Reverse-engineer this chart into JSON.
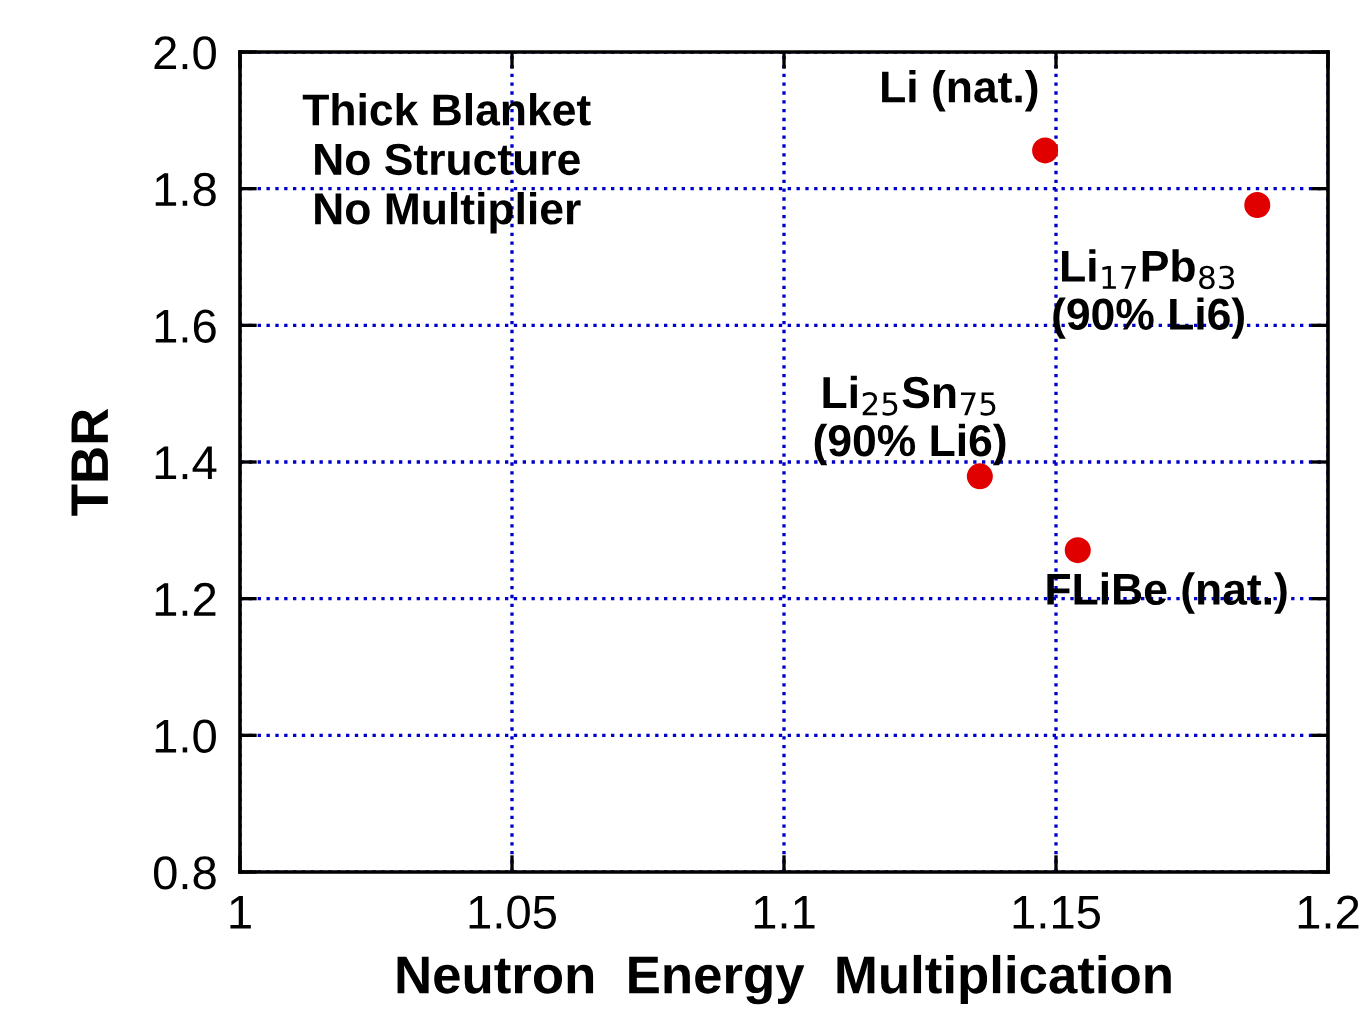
{
  "chart_data": {
    "type": "scatter",
    "xlabel": "Neutron  Energy  Multiplication",
    "ylabel": "TBR",
    "x": [
      1.148,
      1.187,
      1.136,
      1.154
    ],
    "series": [
      {
        "color": "#e00000",
        "values": [
          1.856,
          1.776,
          1.379,
          1.271
        ]
      }
    ],
    "marker": "circle",
    "grid": true,
    "xlim": [
      1,
      1.2
    ],
    "xticks": [
      1,
      1.05,
      1.1,
      1.15,
      1.2
    ],
    "ylim": [
      0.8,
      2.0
    ],
    "yticks": [
      {
        "value": 0.8,
        "label": "0.8"
      },
      {
        "value": 1.0,
        "label": "1.0"
      },
      {
        "value": 1.2,
        "label": "1.2"
      },
      {
        "value": 1.4,
        "label": "1.4"
      },
      {
        "value": 1.6,
        "label": "1.6"
      },
      {
        "value": 1.8,
        "label": "1.8"
      },
      {
        "value": 2.0,
        "label": "2.0"
      }
    ],
    "annotations": [
      "Thick Blanket\nNo Structure\nNo Multiplier",
      {
        "text": "Li (nat.)",
        "x": 1.148,
        "y": 1.856
      },
      {
        "text": "Li$_{17}$Pb$_{83}$\n(90% Li6)",
        "x": 1.187,
        "y": 1.776
      },
      {
        "text": "Li$_{25}$Sn$_{75}$\n(90% Li6)",
        "x": 1.136,
        "y": 1.379
      },
      {
        "text": "FLiBe (nat.)",
        "x": 1.154,
        "y": 1.271
      }
    ]
  }
}
